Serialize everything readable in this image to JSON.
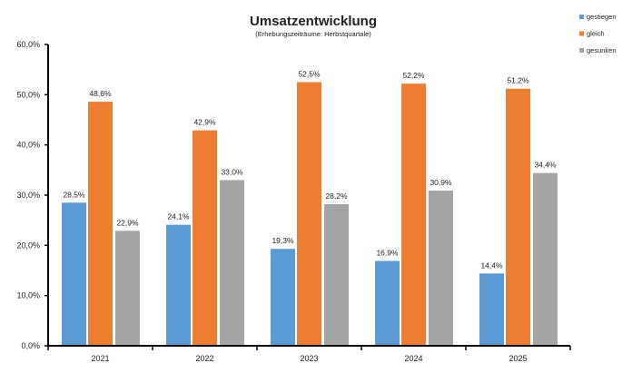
{
  "chart_data": {
    "type": "bar",
    "title": "Umsatzentwicklung",
    "subtitle": "(Erhebungszeiträume: Herbstquartale)",
    "categories": [
      "2021",
      "2022",
      "2023",
      "2024",
      "2025"
    ],
    "series": [
      {
        "name": "gestiegen",
        "color": "#5B9BD5",
        "values": [
          28.5,
          24.1,
          19.3,
          16.9,
          14.4
        ],
        "labels": [
          "28,5%",
          "24,1%",
          "19,3%",
          "16,9%",
          "14,4%"
        ]
      },
      {
        "name": "gleich",
        "color": "#ED7D31",
        "values": [
          48.6,
          42.9,
          52.5,
          52.2,
          51.2
        ],
        "labels": [
          "48,6%",
          "42,9%",
          "52,5%",
          "52,2%",
          "51,2%"
        ]
      },
      {
        "name": "gesunken",
        "color": "#A5A5A5",
        "values": [
          22.9,
          33.0,
          28.2,
          30.9,
          34.4
        ],
        "labels": [
          "22,9%",
          "33,0%",
          "28,2%",
          "30,9%",
          "34,4%"
        ]
      }
    ],
    "ylim": [
      0,
      60
    ],
    "yticks": [
      0,
      10,
      20,
      30,
      40,
      50,
      60
    ],
    "ytick_labels": [
      "0,0%",
      "10,0%",
      "20,0%",
      "30,0%",
      "40,0%",
      "50,0%",
      "60,0%"
    ],
    "grid": false,
    "legend": "top-right",
    "xlabel": "",
    "ylabel": ""
  }
}
